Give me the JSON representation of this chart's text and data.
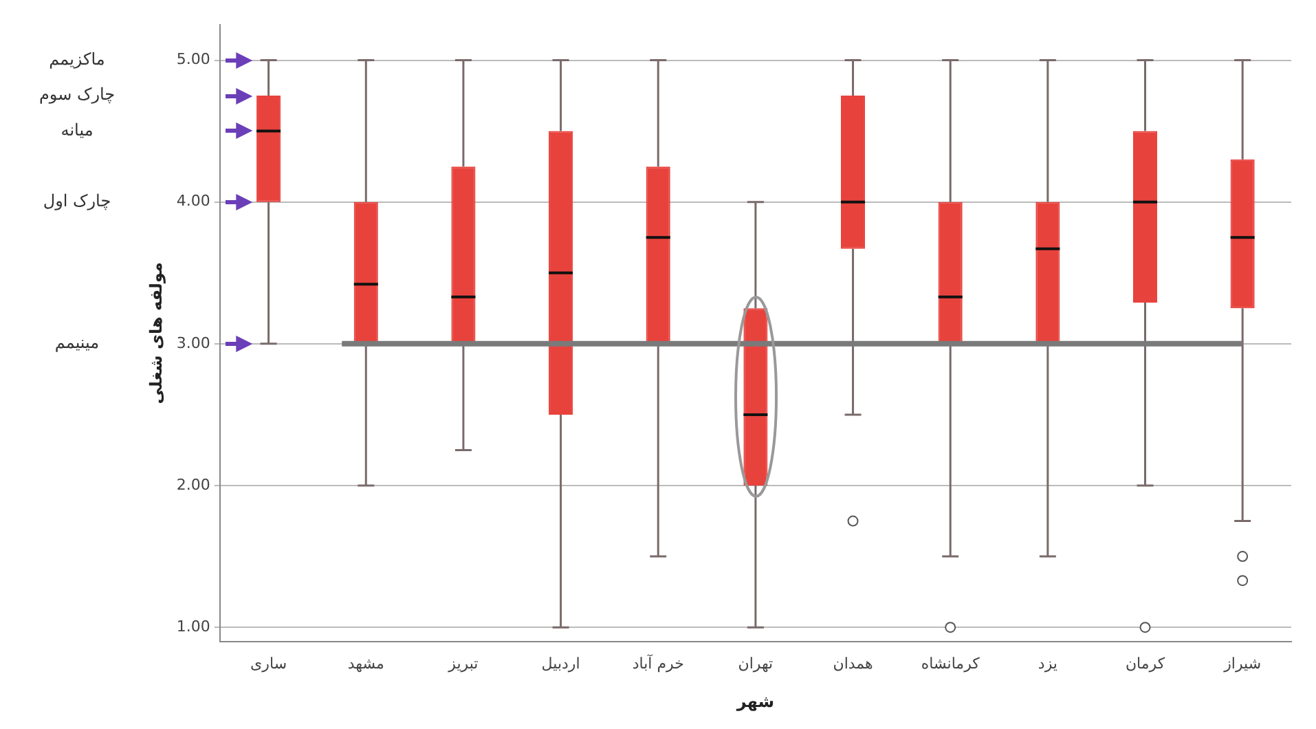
{
  "chart_data": {
    "type": "box",
    "xlabel": "شهر",
    "ylabel": "مولفه های شغلی",
    "categories": [
      "ساری",
      "مشهد",
      "تبریز",
      "اردبیل",
      "خرم آباد",
      "تهران",
      "همدان",
      "کرمانشاه",
      "یزد",
      "کرمان",
      "شیراز"
    ],
    "color": "#e8423c",
    "boxes": [
      {
        "low": 3,
        "q1": 4,
        "median": 4.5,
        "q3": 4.75,
        "high": 5
      },
      {
        "low": 2,
        "q1": 3,
        "median": 3.42,
        "q3": 4,
        "high": 5
      },
      {
        "low": 2.25,
        "q1": 3,
        "median": 3.33,
        "q3": 4.25,
        "high": 5
      },
      {
        "low": 1,
        "q1": 2.5,
        "median": 3.5,
        "q3": 4.5,
        "high": 5
      },
      {
        "low": 1.5,
        "q1": 3,
        "median": 3.75,
        "q3": 4.25,
        "high": 5
      },
      {
        "low": 1,
        "q1": 2,
        "median": 2.5,
        "q3": 3.25,
        "high": 4
      },
      {
        "low": 2.5,
        "q1": 3.67,
        "median": 4,
        "q3": 4.75,
        "high": 5,
        "outliers": [
          1.75
        ]
      },
      {
        "low": 1.5,
        "q1": 3,
        "median": 3.33,
        "q3": 4,
        "high": 5,
        "outliers": [
          1
        ]
      },
      {
        "low": 1.5,
        "q1": 3,
        "median": 3.67,
        "q3": 4,
        "high": 5
      },
      {
        "low": 2,
        "q1": 3.29,
        "median": 4,
        "q3": 4.5,
        "high": 5,
        "outliers": [
          1
        ]
      },
      {
        "low": 1.75,
        "q1": 3.25,
        "median": 3.75,
        "q3": 4.3,
        "high": 5,
        "outliers": [
          1.5,
          1.33
        ]
      }
    ],
    "ylim": [
      0.9,
      5.25
    ],
    "yticks": [
      {
        "value": 1,
        "label": "1.00"
      },
      {
        "value": 2,
        "label": "2.00"
      },
      {
        "value": 3,
        "label": "3.00"
      },
      {
        "value": 4,
        "label": "4.00"
      },
      {
        "value": 5,
        "label": "5.00"
      }
    ],
    "grid": "y",
    "legend": false,
    "ref_lines": [
      {
        "axis": "y",
        "value": 3,
        "color": "#7a7a7a"
      }
    ],
    "annotations": [
      "ماکزیمم",
      "چارک سوم",
      "میانه",
      "چارک اول",
      "مینیمم"
    ]
  }
}
